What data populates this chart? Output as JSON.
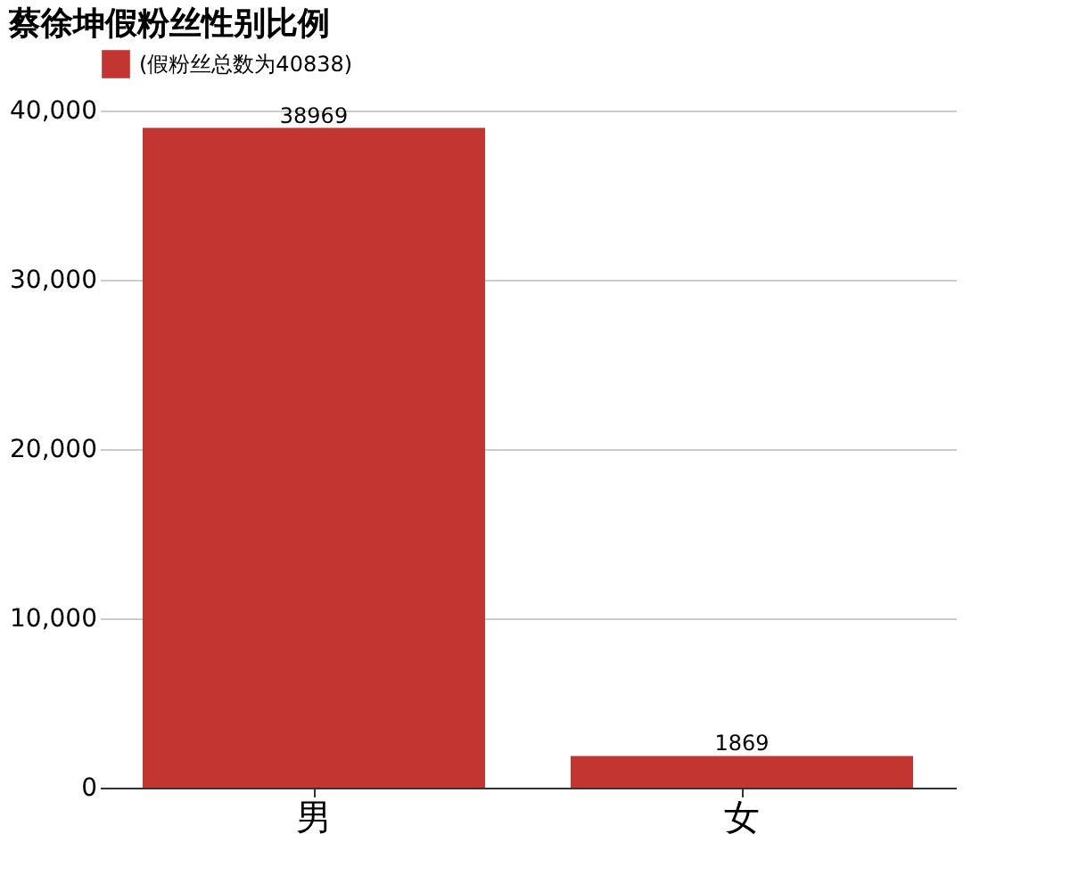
{
  "chart_data": {
    "type": "bar",
    "title": "蔡徐坤假粉丝性别比例",
    "categories": [
      "男",
      "女"
    ],
    "series": [
      {
        "name": "(假粉丝总数为40838)",
        "color": "#c23531",
        "values": [
          38969,
          1869
        ]
      }
    ],
    "ylim": [
      0,
      40000
    ],
    "yticks": [
      0,
      {
        "value": 10000,
        "label": "10,000"
      },
      {
        "value": 20000,
        "label": "20,000"
      },
      {
        "value": 30000,
        "label": "30,000"
      },
      {
        "value": 40000,
        "label": "40,000"
      }
    ],
    "grid": "y",
    "legend": "top",
    "data_labels": true
  }
}
